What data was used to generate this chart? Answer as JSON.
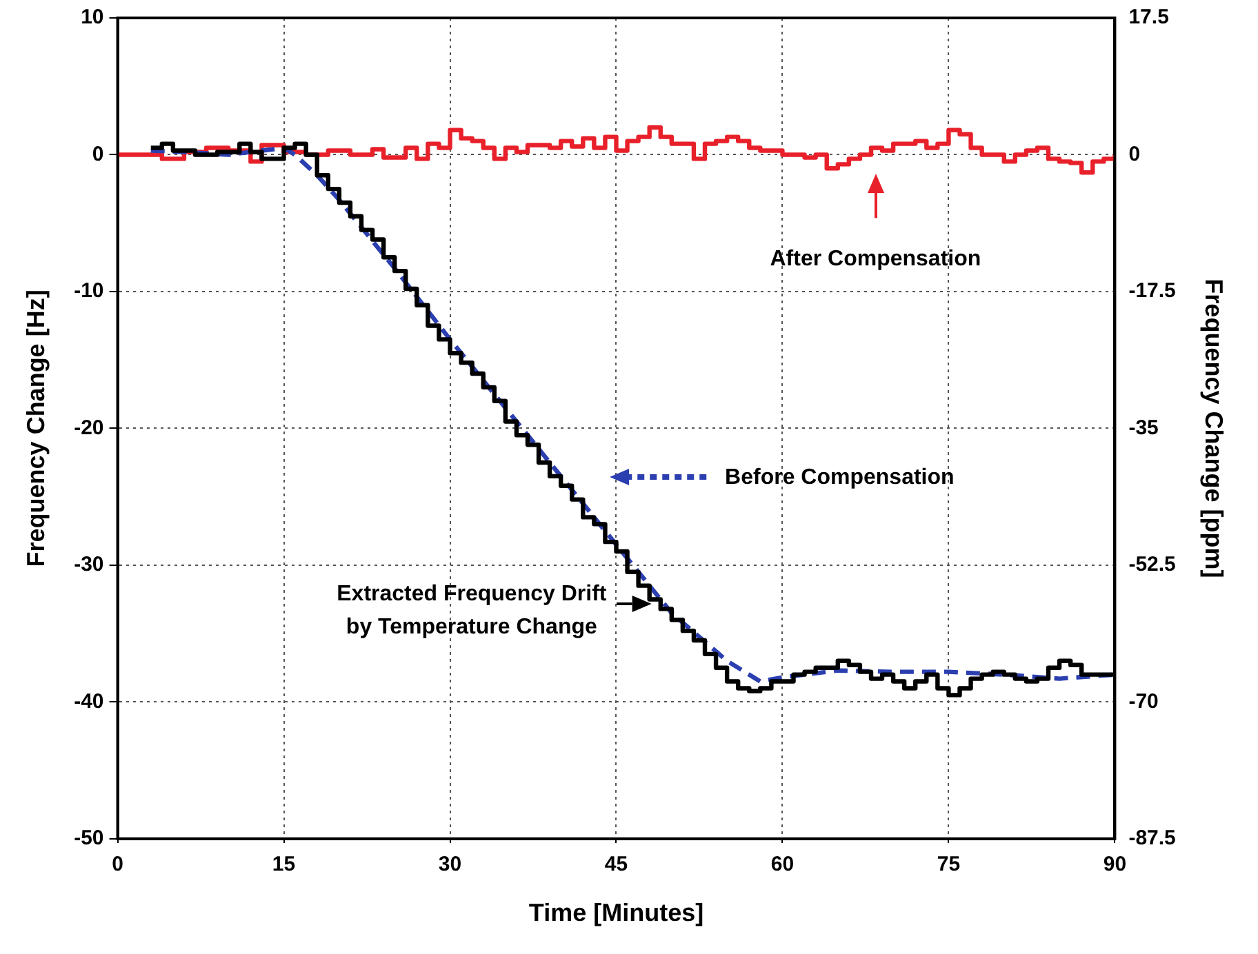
{
  "chart_data": {
    "type": "line",
    "xlabel": "Time [Minutes]",
    "ylabel": "Frequency Change [Hz]",
    "y2label": "Frequency Change [ppm]",
    "xlim": [
      0,
      90
    ],
    "xticks": [
      0,
      15,
      30,
      45,
      60,
      75,
      90
    ],
    "ylim": [
      -50,
      10
    ],
    "yticks": [
      -50,
      -40,
      -30,
      -20,
      -10,
      0,
      10
    ],
    "y2lim": [
      -87.5,
      17.5
    ],
    "y2ticks": [
      -87.5,
      -70,
      -52.5,
      -35,
      -17.5,
      0,
      17.5
    ],
    "grid": true,
    "legend": false,
    "marker": "none",
    "annotations": [
      "After Compensation",
      "Before Compensation",
      "Extracted Frequency Drift by Temperature Change"
    ],
    "series": [
      {
        "type": "step",
        "color": "#000000",
        "x": [
          3,
          4,
          5,
          7,
          9,
          11,
          12,
          13,
          15,
          16,
          17,
          18,
          19,
          20,
          21,
          22,
          23,
          24,
          25,
          26,
          27,
          28,
          29,
          30,
          31,
          32,
          33,
          34,
          35,
          36,
          37,
          38,
          39,
          40,
          41,
          42,
          43,
          44,
          45,
          46,
          47,
          48,
          49,
          50,
          51,
          52,
          53,
          54,
          55,
          56,
          57,
          58,
          59,
          60,
          61,
          62,
          63,
          64,
          65,
          66,
          67,
          68,
          69,
          70,
          71,
          72,
          73,
          74,
          75,
          76,
          77,
          78,
          79,
          80,
          81,
          82,
          83,
          84,
          85,
          86,
          87,
          88,
          90
        ],
        "values": [
          0.5,
          0.8,
          0.3,
          0,
          0.2,
          0.8,
          0.2,
          -0.3,
          0.5,
          0.8,
          0,
          -1.5,
          -2.5,
          -3.5,
          -4.5,
          -5.5,
          -6.2,
          -7.5,
          -8.5,
          -9.8,
          -11,
          -12.5,
          -13.5,
          -14.5,
          -15.2,
          -16,
          -17,
          -18,
          -19.5,
          -20.5,
          -21.2,
          -22.5,
          -23.5,
          -24.2,
          -25.2,
          -26.5,
          -27,
          -28.3,
          -29,
          -30.5,
          -31.5,
          -32.5,
          -33.2,
          -34,
          -34.8,
          -35.5,
          -36.5,
          -37.5,
          -38.5,
          -39,
          -39.2,
          -39,
          -38.5,
          -38.5,
          -38,
          -37.8,
          -37.5,
          -37.5,
          -37,
          -37.3,
          -37.8,
          -38.3,
          -38,
          -38.5,
          -39,
          -38.5,
          -38,
          -39,
          -39.5,
          -39,
          -38.3,
          -38,
          -37.8,
          -38,
          -38.3,
          -38.5,
          -38.3,
          -37.5,
          -37,
          -37.3,
          -38,
          -38,
          -38
        ]
      },
      {
        "type": "line",
        "color": "#2b3fb0",
        "line_style": "dashed",
        "x": [
          3,
          6,
          10,
          13,
          15,
          16,
          18,
          20,
          25,
          30,
          35,
          40,
          45,
          50,
          55,
          58,
          60,
          65,
          70,
          75,
          80,
          85,
          90
        ],
        "values": [
          0.3,
          0.2,
          0,
          0.3,
          0.5,
          0,
          -1.5,
          -3.3,
          -8.3,
          -13.5,
          -18.5,
          -23.5,
          -28.5,
          -33.5,
          -37,
          -38.5,
          -38.2,
          -37.7,
          -37.8,
          -37.8,
          -38,
          -38.3,
          -38
        ]
      },
      {
        "type": "step",
        "color": "#e8202a",
        "x": [
          0,
          2,
          4,
          6,
          8,
          10,
          12,
          13,
          15,
          17,
          19,
          21,
          23,
          24,
          26,
          27,
          28,
          29,
          30,
          31,
          32,
          33,
          34,
          35,
          36,
          37,
          39,
          40,
          41,
          42,
          43,
          44,
          45,
          46,
          47,
          48,
          49,
          50,
          52,
          53,
          54,
          55,
          56,
          57,
          58,
          60,
          62,
          63,
          64,
          65,
          66,
          67,
          68,
          69,
          70,
          71,
          72,
          73,
          74,
          75,
          76,
          77,
          78,
          80,
          81,
          82,
          83,
          84,
          85,
          86,
          87,
          88,
          89,
          90
        ],
        "values": [
          0,
          0,
          -0.3,
          0.2,
          0.5,
          0.3,
          -0.5,
          0.7,
          0.2,
          0,
          0.3,
          0,
          0.4,
          -0.2,
          0.5,
          -0.3,
          0.8,
          0.5,
          1.8,
          1.2,
          1,
          0.5,
          -0.3,
          0.5,
          0.2,
          0.7,
          0.5,
          1,
          0.6,
          1.2,
          0.5,
          1.3,
          0.3,
          1,
          1.3,
          2,
          1.3,
          0.8,
          -0.3,
          0.8,
          1,
          1.3,
          1,
          0.5,
          0.3,
          0,
          -0.2,
          0,
          -1,
          -0.7,
          -0.3,
          0,
          0.5,
          0.3,
          0.8,
          0.8,
          1,
          0.5,
          0.8,
          1.8,
          1.5,
          0.5,
          0,
          -0.5,
          0,
          0.3,
          0.5,
          -0.3,
          -0.5,
          -0.6,
          -1.3,
          -0.5,
          -0.3,
          0
        ]
      }
    ]
  }
}
